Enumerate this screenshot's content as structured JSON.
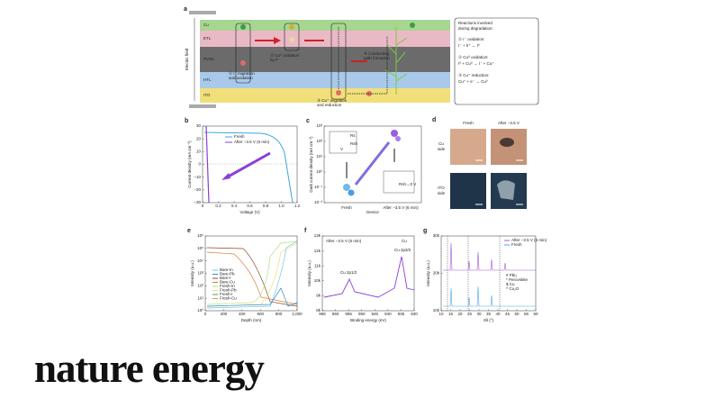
{
  "figure": {
    "panel_a": {
      "label": "a",
      "electric_field": "Electric field",
      "layers": [
        "Cu",
        "ETL",
        "PVSK",
        "HTL",
        "ITO"
      ],
      "steps": [
        "① I⁻ migration",
        "and oxidation",
        "② Cu⁰ oxidation",
        "by I⁰",
        "③ Cu⁺ migration",
        "and reduction",
        "④ Conducting",
        "path formation"
      ],
      "reactions_title": [
        "Reactions involved",
        "during degradation:"
      ],
      "reactions": [
        {
          "name": "① I⁻ oxidation:",
          "eq": "I⁻ + h⁺ → I⁰"
        },
        {
          "name": "② Cu⁰ oxidation:",
          "eq": "I⁰ + Cu⁰ → I⁻ + Cu⁺"
        },
        {
          "name": "③ Cu⁺ reduction:",
          "eq": "Cu⁺ + e⁻ → Cu⁰"
        }
      ]
    },
    "panel_b": {
      "label": "b",
      "xlabel": "Voltage (V)",
      "ylabel": "Current density (mA cm⁻²)",
      "xticks": [
        "0",
        "0.2",
        "0.4",
        "0.6",
        "0.8",
        "1.0",
        "1.2"
      ],
      "yticks": [
        "30",
        "20",
        "10",
        "0",
        "−10",
        "−20",
        "−30"
      ],
      "legend": [
        "Fresh",
        "After −3.5 V (6 min)"
      ]
    },
    "panel_c": {
      "label": "c",
      "xlabel": "Device",
      "ylabel": "Dark current density (mA cm⁻²)",
      "categories": [
        "Fresh",
        "After −3.5 V (6 min)"
      ],
      "yticks": [
        "10³",
        "10²",
        "10¹",
        "10⁰",
        "10⁻¹",
        "10⁻²"
      ],
      "inset": [
        "Rs",
        "Rsh",
        "V",
        "Rsh→0 V"
      ]
    },
    "panel_d": {
      "label": "d",
      "columns": [
        "Fresh",
        "After −3.5 V"
      ],
      "rows": [
        [
          "Cu",
          "side"
        ],
        [
          "ITO",
          "side"
        ]
      ]
    },
    "panel_e": {
      "label": "e",
      "xlabel": "Depth (nm)",
      "ylabel": "Intensity (a.u.)",
      "xticks": [
        "0",
        "200",
        "400",
        "600",
        "800",
        "1,000"
      ],
      "yticks": [
        "10⁶",
        "10⁵",
        "10⁴",
        "10³",
        "10²",
        "10¹",
        "10⁰"
      ],
      "legend": [
        "Bare-In",
        "Bare-Pb",
        "Bare-I",
        "Bare-Cu",
        "Fresh-In",
        "Fresh-Pb",
        "Fresh-I",
        "Fresh-Cu"
      ]
    },
    "panel_f": {
      "label": "f",
      "xlabel": "Binding energy (eV)",
      "ylabel": "Intensity (a.u.)",
      "xticks": [
        "965",
        "960",
        "955",
        "950",
        "945",
        "940",
        "935",
        "930"
      ],
      "yticks": [
        "13k",
        "12k",
        "11k",
        "10k",
        "9k",
        "8k"
      ],
      "note": "After −3.5 V (6 min)",
      "element": "Cu",
      "peaks": [
        "Cu 2p1/2",
        "Cu 2p3/2"
      ]
    },
    "panel_g": {
      "label": "g",
      "xlabel": "2θ (°)",
      "ylabel": "Intensity (a.u.)",
      "xticks": [
        "10",
        "15",
        "20",
        "25",
        "30",
        "35",
        "40",
        "45",
        "50",
        "55",
        "60"
      ],
      "yticks": [
        "30k",
        "20k",
        "10k"
      ],
      "legend": [
        "After −3.5 V (6 min)",
        "Fresh"
      ],
      "markers": [
        "# PbI₂",
        "* Perovskite",
        "$ Cu",
        "^ Cu₂O"
      ]
    }
  },
  "journal": "nature energy"
}
